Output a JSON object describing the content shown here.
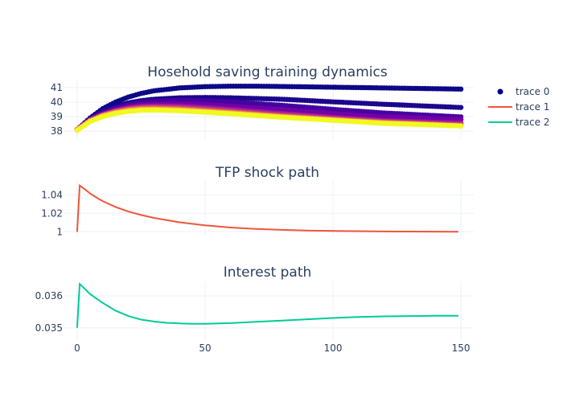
{
  "chart_data": {
    "type": "line",
    "legend": {
      "position": "top-right",
      "entries": [
        {
          "name": "trace 0",
          "symbol": "marker",
          "color": "#00008b"
        },
        {
          "name": "trace 1",
          "symbol": "line",
          "color": "#EF553B"
        },
        {
          "name": "trace 2",
          "symbol": "line",
          "color": "#00cc96"
        }
      ]
    },
    "grid": true,
    "xlim": [
      -5,
      155
    ],
    "x_ticks": [
      0,
      50,
      100,
      150
    ],
    "panels": [
      {
        "title": "Hosehold saving training dynamics",
        "type": "scatter",
        "ylim": [
          37.5,
          41.5
        ],
        "y_ticks": [
          38,
          39,
          40,
          41
        ],
        "y_tick_labels": [
          "38",
          "39",
          "40",
          "41"
        ],
        "series": [
          {
            "x": [
              0,
              5,
              10,
              15,
              20,
              25,
              30,
              40,
              50,
              60,
              70,
              80,
              100,
              120,
              150
            ],
            "values": [
              38.1,
              38.9,
              39.55,
              40.0,
              40.35,
              40.6,
              40.78,
              40.98,
              41.07,
              41.1,
              41.1,
              41.08,
              41.03,
              40.98,
              40.9
            ],
            "color": "#0d0887"
          },
          {
            "x": [
              0,
              5,
              10,
              15,
              20,
              25,
              30,
              40,
              50,
              60,
              80,
              100,
              120,
              150
            ],
            "values": [
              38.1,
              38.85,
              39.35,
              39.7,
              39.95,
              40.1,
              40.2,
              40.3,
              40.32,
              40.3,
              40.2,
              40.02,
              39.85,
              39.63
            ],
            "color": "#1b068d"
          },
          {
            "x": [
              0,
              5,
              10,
              15,
              20,
              25,
              30,
              40,
              50,
              60,
              80,
              100,
              120,
              150
            ],
            "values": [
              38.1,
              38.82,
              39.28,
              39.6,
              39.82,
              39.96,
              40.05,
              40.12,
              40.1,
              40.02,
              39.78,
              39.5,
              39.25,
              38.98
            ],
            "color": "#46039f"
          },
          {
            "x": [
              0,
              5,
              10,
              15,
              20,
              25,
              30,
              40,
              50,
              60,
              80,
              100,
              120,
              150
            ],
            "values": [
              38.1,
              38.78,
              39.2,
              39.48,
              39.68,
              39.8,
              39.86,
              39.88,
              39.82,
              39.72,
              39.45,
              39.2,
              38.98,
              38.8
            ],
            "color": "#7201a8"
          },
          {
            "x": [
              0,
              5,
              10,
              15,
              20,
              25,
              30,
              40,
              50,
              60,
              80,
              100,
              120,
              150
            ],
            "values": [
              38.1,
              38.76,
              39.15,
              39.42,
              39.6,
              39.7,
              39.74,
              39.72,
              39.62,
              39.5,
              39.22,
              38.95,
              38.72,
              38.55
            ],
            "color": "#9c179e"
          },
          {
            "x": [
              0,
              5,
              10,
              15,
              20,
              25,
              30,
              40,
              50,
              60,
              80,
              100,
              120,
              150
            ],
            "values": [
              38.1,
              38.74,
              39.12,
              39.38,
              39.54,
              39.63,
              39.66,
              39.62,
              39.52,
              39.4,
              39.12,
              38.88,
              38.66,
              38.45
            ],
            "color": "#bd3786"
          },
          {
            "x": [
              0,
              5,
              10,
              15,
              20,
              25,
              30,
              40,
              50,
              60,
              80,
              100,
              120,
              150
            ],
            "values": [
              38.1,
              38.72,
              39.1,
              39.34,
              39.5,
              39.58,
              39.6,
              39.55,
              39.44,
              39.32,
              39.05,
              38.82,
              38.62,
              38.4
            ],
            "color": "#d8576b"
          },
          {
            "x": [
              0,
              5,
              10,
              15,
              20,
              25,
              30,
              40,
              50,
              60,
              80,
              100,
              120,
              150
            ],
            "values": [
              38.1,
              38.7,
              39.07,
              39.3,
              39.45,
              39.53,
              39.55,
              39.5,
              39.39,
              39.27,
              39.01,
              38.79,
              38.58,
              38.38
            ],
            "color": "#ed7953"
          },
          {
            "x": [
              0,
              5,
              10,
              15,
              20,
              25,
              30,
              40,
              50,
              60,
              80,
              100,
              120,
              150
            ],
            "values": [
              38.05,
              38.68,
              39.04,
              39.26,
              39.41,
              39.48,
              39.5,
              39.45,
              39.35,
              39.23,
              38.98,
              38.77,
              38.55,
              38.36
            ],
            "color": "#fdb42f"
          },
          {
            "x": [
              0,
              5,
              10,
              15,
              20,
              25,
              30,
              40,
              50,
              60,
              80,
              100,
              120,
              150
            ],
            "values": [
              38.05,
              38.65,
              39.0,
              39.22,
              39.36,
              39.43,
              39.45,
              39.4,
              39.3,
              39.19,
              38.95,
              38.74,
              38.53,
              38.35
            ],
            "color": "#f0f921"
          }
        ]
      },
      {
        "title": "TFP shock path",
        "type": "line",
        "ylim": [
          0.995,
          1.055
        ],
        "y_ticks": [
          1.0,
          1.02,
          1.04
        ],
        "y_tick_labels": [
          "1",
          "1.02",
          "1.04"
        ],
        "series": [
          {
            "name": "trace 1",
            "color": "#EF553B",
            "x": [
              0,
              1,
              3,
              5,
              8,
              10,
              15,
              20,
              25,
              30,
              40,
              50,
              60,
              70,
              80,
              90,
              100,
              125,
              149
            ],
            "values": [
              1.0,
              1.05,
              1.046,
              1.0415,
              1.0362,
              1.0332,
              1.0268,
              1.0219,
              1.0181,
              1.015,
              1.0102,
              1.0069,
              1.0046,
              1.0031,
              1.002,
              1.0013,
              1.0008,
              1.0002,
              1.0
            ]
          }
        ]
      },
      {
        "title": "Interest path",
        "type": "line",
        "ylim": [
          0.03462,
          0.03645
        ],
        "y_ticks": [
          0.035,
          0.036
        ],
        "y_tick_labels": [
          "0.035",
          "0.036"
        ],
        "series": [
          {
            "name": "trace 2",
            "color": "#00cc96",
            "x": [
              0,
              1,
              3,
              5,
              8,
              10,
              15,
              20,
              25,
              30,
              35,
              40,
              45,
              50,
              55,
              60,
              70,
              80,
              90,
              100,
              110,
              120,
              130,
              140,
              149
            ],
            "values": [
              0.035,
              0.03637,
              0.03622,
              0.03606,
              0.03589,
              0.03578,
              0.03554,
              0.03537,
              0.03526,
              0.0352,
              0.03516,
              0.03514,
              0.03513,
              0.03513,
              0.03514,
              0.03515,
              0.03519,
              0.03523,
              0.03527,
              0.03531,
              0.03534,
              0.03536,
              0.03537,
              0.03538,
              0.03538
            ]
          }
        ]
      }
    ]
  }
}
